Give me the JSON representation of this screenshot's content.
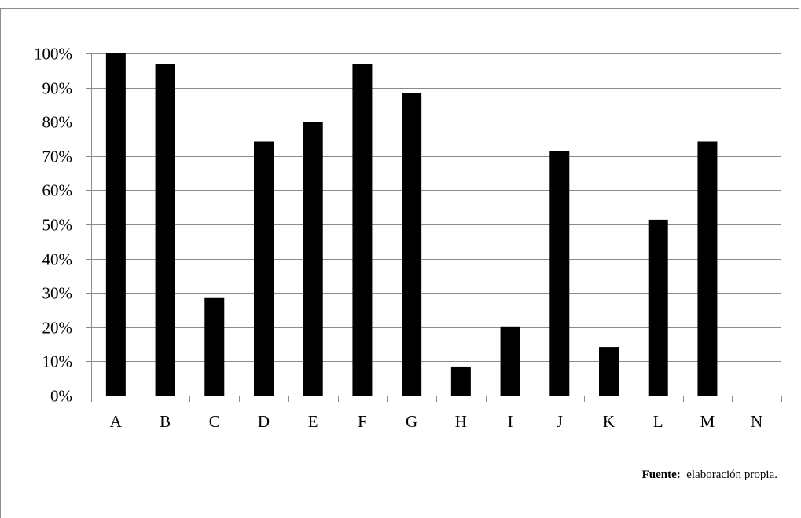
{
  "chart_data": {
    "type": "bar",
    "categories": [
      "A",
      "B",
      "C",
      "D",
      "E",
      "F",
      "G",
      "H",
      "I",
      "J",
      "K",
      "L",
      "M",
      "N"
    ],
    "values": [
      100,
      97,
      28.5,
      74.2,
      80,
      97,
      88.5,
      8.5,
      20,
      71.4,
      14.2,
      51.4,
      74.2,
      0
    ],
    "title": "",
    "xlabel": "",
    "ylabel": "",
    "ylim": [
      0,
      100
    ],
    "ytick_step": 10,
    "ytick_suffix": "%",
    "grid": true,
    "bar_color": "#000000",
    "grid_color": "#8c8c8c"
  },
  "source": {
    "label": "Fuente:",
    "text": "elaboración propia."
  }
}
